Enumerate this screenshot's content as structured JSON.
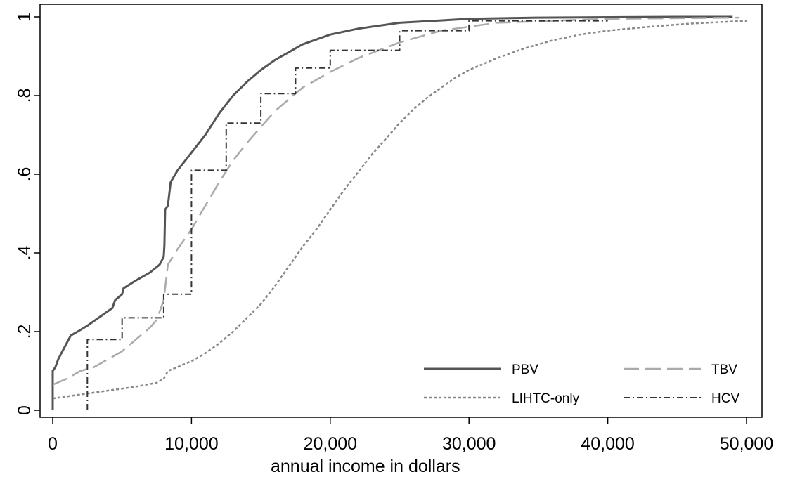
{
  "chart_data": {
    "type": "line",
    "title": "",
    "xlabel": "annual income in dollars",
    "ylabel": "",
    "xlim": [
      0,
      50000
    ],
    "ylim": [
      0,
      1
    ],
    "grid": false,
    "legend_position": "bottom-right",
    "x_ticks": [
      {
        "value": 0,
        "label": "0"
      },
      {
        "value": 10000,
        "label": "10,000"
      },
      {
        "value": 20000,
        "label": "20,000"
      },
      {
        "value": 30000,
        "label": "30,000"
      },
      {
        "value": 40000,
        "label": "40,000"
      },
      {
        "value": 50000,
        "label": "50,000"
      }
    ],
    "y_ticks": [
      {
        "value": 0,
        "label": "0"
      },
      {
        "value": 0.2,
        "label": ".2"
      },
      {
        "value": 0.4,
        "label": ".4"
      },
      {
        "value": 0.6,
        "label": ".6"
      },
      {
        "value": 0.8,
        "label": ".8"
      },
      {
        "value": 1,
        "label": "1"
      }
    ],
    "series": [
      {
        "name": "PBV",
        "color": "#555555",
        "style": "solid",
        "points": [
          [
            0,
            0
          ],
          [
            0,
            0.1
          ],
          [
            200,
            0.11
          ],
          [
            400,
            0.13
          ],
          [
            700,
            0.15
          ],
          [
            1000,
            0.17
          ],
          [
            1300,
            0.19
          ],
          [
            1800,
            0.2
          ],
          [
            2500,
            0.215
          ],
          [
            3500,
            0.24
          ],
          [
            4300,
            0.26
          ],
          [
            4500,
            0.28
          ],
          [
            5000,
            0.295
          ],
          [
            5100,
            0.31
          ],
          [
            6000,
            0.33
          ],
          [
            7000,
            0.35
          ],
          [
            7700,
            0.37
          ],
          [
            8000,
            0.39
          ],
          [
            8050,
            0.42
          ],
          [
            8100,
            0.51
          ],
          [
            8300,
            0.52
          ],
          [
            8500,
            0.58
          ],
          [
            9000,
            0.61
          ],
          [
            10000,
            0.655
          ],
          [
            11000,
            0.7
          ],
          [
            12000,
            0.755
          ],
          [
            13000,
            0.8
          ],
          [
            14000,
            0.835
          ],
          [
            15000,
            0.865
          ],
          [
            16000,
            0.89
          ],
          [
            17000,
            0.91
          ],
          [
            18000,
            0.93
          ],
          [
            20000,
            0.955
          ],
          [
            22000,
            0.97
          ],
          [
            25000,
            0.985
          ],
          [
            30000,
            0.995
          ],
          [
            35000,
            0.998
          ],
          [
            45000,
            1.0
          ],
          [
            49000,
            1.0
          ]
        ]
      },
      {
        "name": "TBV",
        "color": "#aaaaaa",
        "style": "dashed",
        "points": [
          [
            0,
            0.065
          ],
          [
            1000,
            0.08
          ],
          [
            2000,
            0.1
          ],
          [
            3000,
            0.11
          ],
          [
            4000,
            0.13
          ],
          [
            5000,
            0.15
          ],
          [
            6000,
            0.18
          ],
          [
            7000,
            0.21
          ],
          [
            7500,
            0.23
          ],
          [
            8000,
            0.28
          ],
          [
            8300,
            0.37
          ],
          [
            9000,
            0.41
          ],
          [
            10000,
            0.46
          ],
          [
            11000,
            0.52
          ],
          [
            12000,
            0.58
          ],
          [
            13000,
            0.635
          ],
          [
            14000,
            0.68
          ],
          [
            15000,
            0.72
          ],
          [
            16000,
            0.76
          ],
          [
            17000,
            0.79
          ],
          [
            18000,
            0.82
          ],
          [
            19000,
            0.84
          ],
          [
            20000,
            0.86
          ],
          [
            22000,
            0.895
          ],
          [
            25000,
            0.935
          ],
          [
            28000,
            0.965
          ],
          [
            32000,
            0.985
          ],
          [
            40000,
            0.995
          ],
          [
            49500,
            0.998
          ]
        ]
      },
      {
        "name": "LIHTC-only",
        "color": "#888888",
        "style": "dotted",
        "points": [
          [
            0,
            0.03
          ],
          [
            2000,
            0.04
          ],
          [
            4000,
            0.05
          ],
          [
            6000,
            0.06
          ],
          [
            7500,
            0.07
          ],
          [
            8000,
            0.08
          ],
          [
            8300,
            0.1
          ],
          [
            9000,
            0.11
          ],
          [
            10000,
            0.125
          ],
          [
            11000,
            0.145
          ],
          [
            12000,
            0.17
          ],
          [
            13000,
            0.2
          ],
          [
            14000,
            0.235
          ],
          [
            15000,
            0.27
          ],
          [
            16000,
            0.315
          ],
          [
            17000,
            0.365
          ],
          [
            18000,
            0.415
          ],
          [
            19000,
            0.46
          ],
          [
            20000,
            0.51
          ],
          [
            21000,
            0.56
          ],
          [
            22000,
            0.605
          ],
          [
            23000,
            0.65
          ],
          [
            24000,
            0.69
          ],
          [
            25000,
            0.73
          ],
          [
            26000,
            0.765
          ],
          [
            27000,
            0.795
          ],
          [
            28000,
            0.82
          ],
          [
            29000,
            0.845
          ],
          [
            30000,
            0.865
          ],
          [
            32000,
            0.895
          ],
          [
            34000,
            0.92
          ],
          [
            36000,
            0.94
          ],
          [
            38000,
            0.955
          ],
          [
            40000,
            0.965
          ],
          [
            43000,
            0.975
          ],
          [
            46000,
            0.983
          ],
          [
            50000,
            0.99
          ]
        ]
      },
      {
        "name": "HCV",
        "color": "#333333",
        "style": "dashdot",
        "points": [
          [
            2500,
            0
          ],
          [
            2500,
            0.18
          ],
          [
            5000,
            0.18
          ],
          [
            5000,
            0.235
          ],
          [
            7500,
            0.235
          ],
          [
            7500,
            0.235
          ],
          [
            8000,
            0.235
          ],
          [
            8000,
            0.295
          ],
          [
            10000,
            0.295
          ],
          [
            10000,
            0.61
          ],
          [
            12500,
            0.61
          ],
          [
            12500,
            0.73
          ],
          [
            15000,
            0.73
          ],
          [
            15000,
            0.805
          ],
          [
            17500,
            0.805
          ],
          [
            17500,
            0.87
          ],
          [
            20000,
            0.87
          ],
          [
            20000,
            0.915
          ],
          [
            25000,
            0.915
          ],
          [
            25000,
            0.965
          ],
          [
            30000,
            0.965
          ],
          [
            30000,
            0.99
          ],
          [
            40000,
            0.99
          ]
        ]
      }
    ]
  }
}
